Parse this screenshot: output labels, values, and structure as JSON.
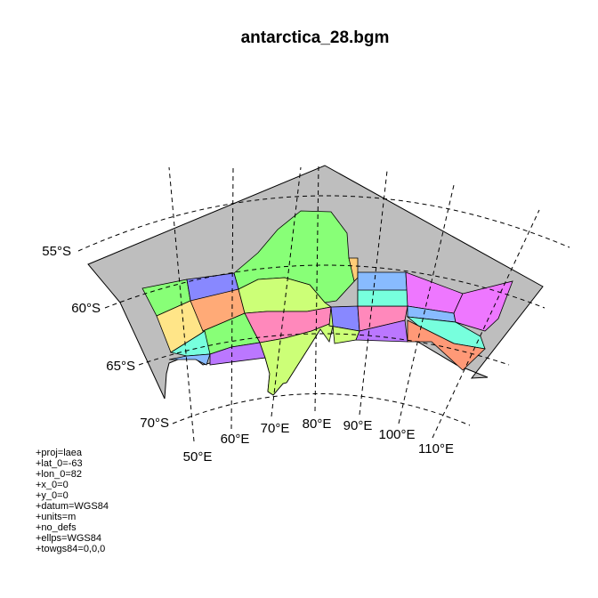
{
  "title": "antarctica_28.bgm",
  "latitude_labels": [
    "55°S",
    "60°S",
    "65°S",
    "70°S"
  ],
  "longitude_labels": [
    "50°E",
    "60°E",
    "70°E",
    "80°E",
    "90°E",
    "100°E",
    "110°E"
  ],
  "projection_lines": [
    "+proj=laea",
    "+lat_0=-63",
    "+lon_0=82",
    "+x_0=0",
    "+y_0=0",
    "+datum=WGS84",
    "+units=m",
    "+no_defs",
    "+ellps=WGS84",
    "+towgs84=0,0,0"
  ],
  "colors": {
    "boundary_box": "#bebebe",
    "green": "#88ff77",
    "light_green": "#ccff77",
    "blue": "#8888ff",
    "yellow": "#ffe588",
    "orange": "#ffaa77",
    "pink": "#ff88bb",
    "purple": "#bb77ff",
    "cyan": "#77ffdd",
    "sky": "#88bbff",
    "magenta": "#ee77ff",
    "salmon": "#ff9977",
    "gold": "#ffcc77"
  }
}
